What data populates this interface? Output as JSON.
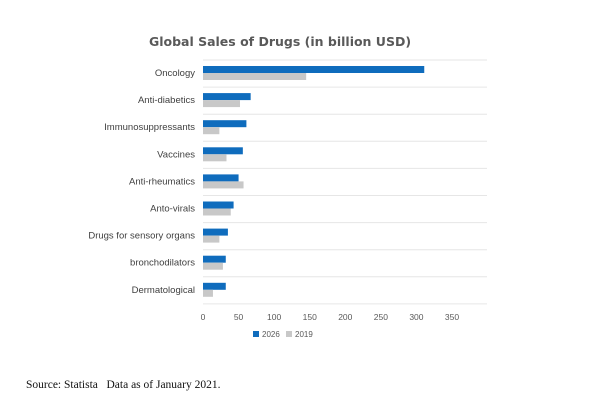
{
  "chart_data": {
    "type": "bar",
    "orientation": "horizontal",
    "title": "Global Sales of Drugs (in billion USD)",
    "categories": [
      "Oncology",
      "Anti-diabetics",
      "Immunosuppressants",
      "Vaccines",
      "Anti-rheumatics",
      "Anto-virals",
      "Drugs for sensory organs",
      "bronchodilators",
      "Dermatological"
    ],
    "series": [
      {
        "name": "2026",
        "color": "#0f6cbd",
        "values": [
          311,
          67,
          61,
          56,
          50,
          43,
          35,
          32,
          32
        ]
      },
      {
        "name": "2019",
        "color": "#c8c8c8",
        "values": [
          145,
          52,
          23,
          33,
          57,
          39,
          23,
          28,
          14
        ]
      }
    ],
    "xlim": [
      0,
      350
    ],
    "xticks": [
      "0",
      "50",
      "100",
      "150",
      "200",
      "250",
      "300",
      "350"
    ],
    "grid": true,
    "legend": "bottom"
  },
  "footer": {
    "source": "Source: Statista   Data as of January 2021."
  }
}
